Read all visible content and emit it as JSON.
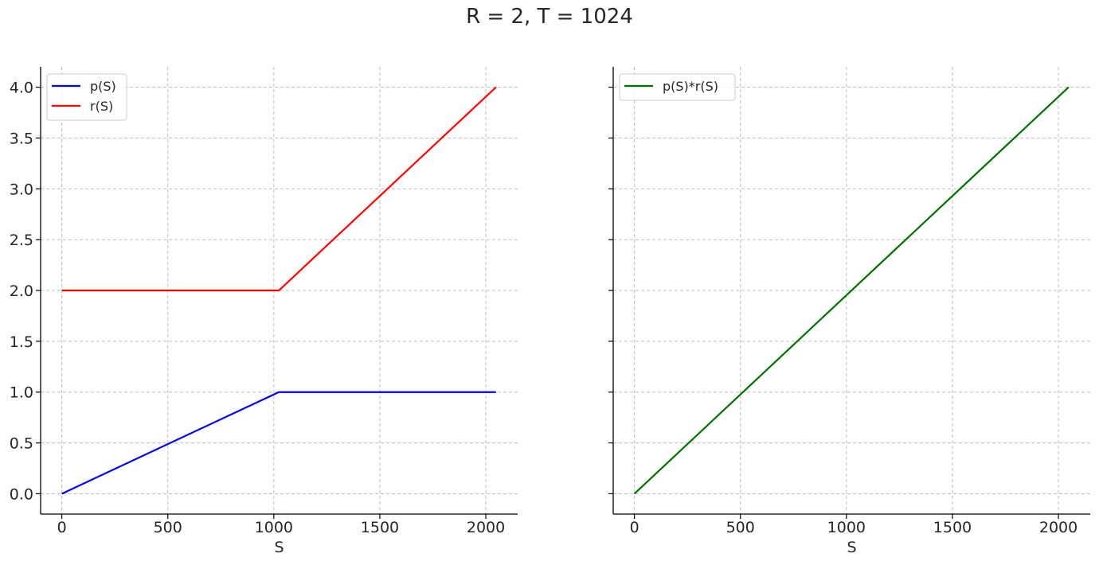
{
  "figure": {
    "title": "R = 2, T = 1024"
  },
  "chart_data": [
    {
      "type": "line",
      "title": "",
      "xlabel": "S",
      "ylabel": "",
      "xlim": [
        -100,
        2150
      ],
      "ylim": [
        -0.2,
        4.2
      ],
      "xticks": [
        0,
        500,
        1000,
        1500,
        2000
      ],
      "yticks": [
        0.0,
        0.5,
        1.0,
        1.5,
        2.0,
        2.5,
        3.0,
        3.5,
        4.0
      ],
      "ytick_labels": [
        "0.0",
        "0.5",
        "1.0",
        "1.5",
        "2.0",
        "2.5",
        "3.0",
        "3.5",
        "4.0"
      ],
      "grid": true,
      "legend": "top-left",
      "series": [
        {
          "name": "p(S)",
          "color": "#0000ff",
          "x": [
            0,
            1024,
            2048
          ],
          "y": [
            0.0,
            1.0,
            1.0
          ]
        },
        {
          "name": "r(S)",
          "color": "#ff0000",
          "x": [
            0,
            1024,
            2048
          ],
          "y": [
            2.0,
            2.0,
            4.0
          ]
        }
      ]
    },
    {
      "type": "line",
      "title": "",
      "xlabel": "S",
      "ylabel": "",
      "xlim": [
        -100,
        2150
      ],
      "ylim": [
        -0.2,
        4.2
      ],
      "xticks": [
        0,
        500,
        1000,
        1500,
        2000
      ],
      "yticks": [
        0.0,
        0.5,
        1.0,
        1.5,
        2.0,
        2.5,
        3.0,
        3.5,
        4.0
      ],
      "ytick_labels": [],
      "grid": true,
      "legend": "top-left",
      "series": [
        {
          "name": "p(S)*r(S)",
          "color": "#007000",
          "x": [
            0,
            2048
          ],
          "y": [
            0.0,
            4.0
          ]
        }
      ]
    }
  ]
}
